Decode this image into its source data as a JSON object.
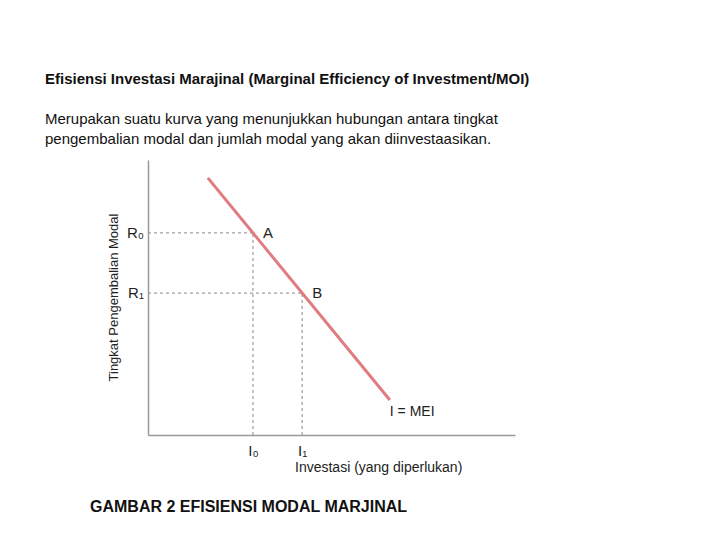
{
  "chart_data": {
    "type": "line",
    "title": "Efisiensi Investasi Marajinal (Marginal Efficiency of Investment/MOI)",
    "subtitle": [
      "Merupakan suatu kurva yang menunjukkan hubungan antara tingkat",
      "pengembalian modal dan jumlah modal yang akan diinvestaasikan."
    ],
    "x_label": "Investasi (yang diperlukan)",
    "y_label": "Tingkat Pengembalian Modal",
    "caption": "GAMBAR 2 EFISIENSI MODAL MARJINAL",
    "x": [
      1.63,
      6.59
    ],
    "series": [
      {
        "name": "I = MEI",
        "color": "#e07c80",
        "line_style": "solid",
        "values": [
          9.35,
          1.27
        ]
      }
    ],
    "xlim": [
      0,
      10
    ],
    "ylim": [
      0,
      10
    ],
    "xticks": [
      {
        "value": 2.86,
        "label": "I₀"
      },
      {
        "value": 4.2,
        "label": "I₁"
      }
    ],
    "yticks": [
      {
        "value": 7.35,
        "label": "R₀"
      },
      {
        "value": 5.16,
        "label": "R₁"
      }
    ],
    "annotations": [
      {
        "text": "A",
        "x": 2.86,
        "y": 7.35
      },
      {
        "text": "B",
        "x": 4.2,
        "y": 5.16
      }
    ],
    "grid": false
  }
}
